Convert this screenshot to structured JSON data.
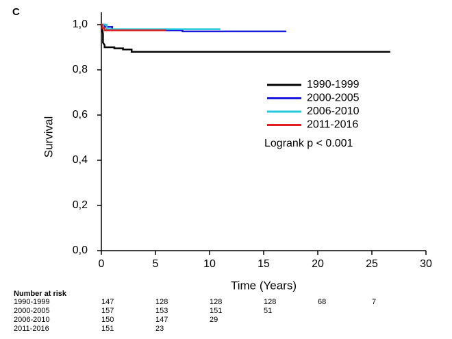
{
  "chart_data": {
    "type": "line",
    "panel_label": "C",
    "y_label": "Survival",
    "x_label": "Time (Years)",
    "xlim": [
      0,
      30
    ],
    "xticks": [
      0,
      5,
      10,
      15,
      20,
      25,
      30
    ],
    "ylim": [
      0,
      1.05
    ],
    "yticks": [
      {
        "value": 0,
        "label": "0,0"
      },
      {
        "value": 0.2,
        "label": "0,2"
      },
      {
        "value": 0.4,
        "label": "0,4"
      },
      {
        "value": 0.6,
        "label": "0,6"
      },
      {
        "value": 0.8,
        "label": "0,8"
      },
      {
        "value": 1,
        "label": "1,0"
      }
    ],
    "grid": false,
    "legend": "right",
    "annotation": "Logrank  p < 0.001",
    "series": [
      {
        "name": "1990-1999",
        "color": "#000000",
        "x": [
          0,
          0.15,
          0.15,
          0.3,
          0.3,
          1.2,
          1.2,
          2.0,
          2.0,
          2.8,
          2.8,
          26.7
        ],
        "values": [
          1.0,
          0.96,
          0.92,
          0.91,
          0.9,
          0.9,
          0.895,
          0.895,
          0.89,
          0.89,
          0.88,
          0.88
        ]
      },
      {
        "name": "2000-2005",
        "color": "#1a1adc",
        "x": [
          0,
          0.3,
          0.3,
          1,
          1,
          7.5,
          7.5,
          17.1
        ],
        "values": [
          1.0,
          1.0,
          0.99,
          0.99,
          0.975,
          0.975,
          0.97,
          0.97
        ]
      },
      {
        "name": "2006-2010",
        "color": "#22c8dc",
        "x": [
          0,
          0.5,
          0.5,
          11
        ],
        "values": [
          1.0,
          1.0,
          0.98,
          0.98
        ]
      },
      {
        "name": "2011-2016",
        "color": "#e02020",
        "x": [
          0,
          0.1,
          0.1,
          0.3,
          0.3,
          6.0
        ],
        "values": [
          1.0,
          1.0,
          0.985,
          0.985,
          0.975,
          0.975
        ]
      }
    ],
    "risk_table": {
      "title": "Number at risk",
      "rows": [
        {
          "label": "1990-1999",
          "counts": [
            "147",
            "128",
            "128",
            "128",
            "68",
            "7"
          ]
        },
        {
          "label": "2000-2005",
          "counts": [
            "157",
            "153",
            "151",
            "51"
          ]
        },
        {
          "label": "2006-2010",
          "counts": [
            "150",
            "147",
            "29"
          ]
        },
        {
          "label": "2011-2016",
          "counts": [
            "151",
            "23"
          ]
        }
      ]
    }
  }
}
